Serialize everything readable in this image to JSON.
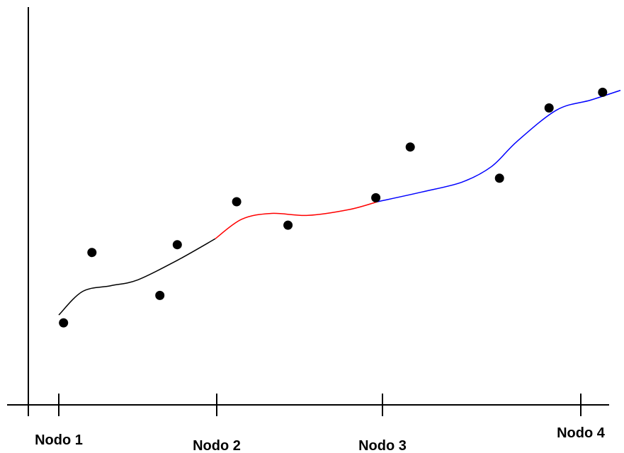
{
  "chart_data": {
    "type": "scatter",
    "title": "",
    "xlabel": "",
    "ylabel": "",
    "grid": false,
    "legend": "none",
    "x_range": [
      0.35,
      4.25
    ],
    "y_range": [
      0,
      10
    ],
    "nodes": [
      {
        "label": "Nodo 1",
        "x": 1
      },
      {
        "label": "Nodo 2",
        "x": 2
      },
      {
        "label": "Nodo 3",
        "x": 3
      },
      {
        "label": "Nodo 4",
        "x": 4
      }
    ],
    "points": [
      {
        "x": 1.03,
        "y": 2.1
      },
      {
        "x": 1.21,
        "y": 3.9
      },
      {
        "x": 1.64,
        "y": 2.8
      },
      {
        "x": 1.75,
        "y": 4.1
      },
      {
        "x": 2.12,
        "y": 5.2
      },
      {
        "x": 2.43,
        "y": 4.6
      },
      {
        "x": 2.96,
        "y": 5.3
      },
      {
        "x": 3.14,
        "y": 6.6
      },
      {
        "x": 3.59,
        "y": 5.8
      },
      {
        "x": 3.84,
        "y": 7.6
      },
      {
        "x": 4.11,
        "y": 8.0
      }
    ],
    "spline_segments": [
      {
        "color": "#000000",
        "points": [
          [
            1.0,
            2.3
          ],
          [
            1.15,
            2.9
          ],
          [
            1.33,
            3.05
          ],
          [
            1.5,
            3.2
          ],
          [
            1.75,
            3.7
          ],
          [
            1.99,
            4.25
          ]
        ]
      },
      {
        "color": "#ff0000",
        "points": [
          [
            1.99,
            4.25
          ],
          [
            2.15,
            4.75
          ],
          [
            2.33,
            4.9
          ],
          [
            2.55,
            4.85
          ],
          [
            2.8,
            5.0
          ],
          [
            2.97,
            5.2
          ]
        ]
      },
      {
        "color": "#0000ff",
        "points": [
          [
            2.97,
            5.2
          ],
          [
            3.2,
            5.45
          ],
          [
            3.4,
            5.7
          ],
          [
            3.55,
            6.1
          ],
          [
            3.68,
            6.75
          ],
          [
            3.88,
            7.55
          ],
          [
            4.05,
            7.8
          ],
          [
            4.2,
            8.05
          ]
        ]
      }
    ]
  }
}
